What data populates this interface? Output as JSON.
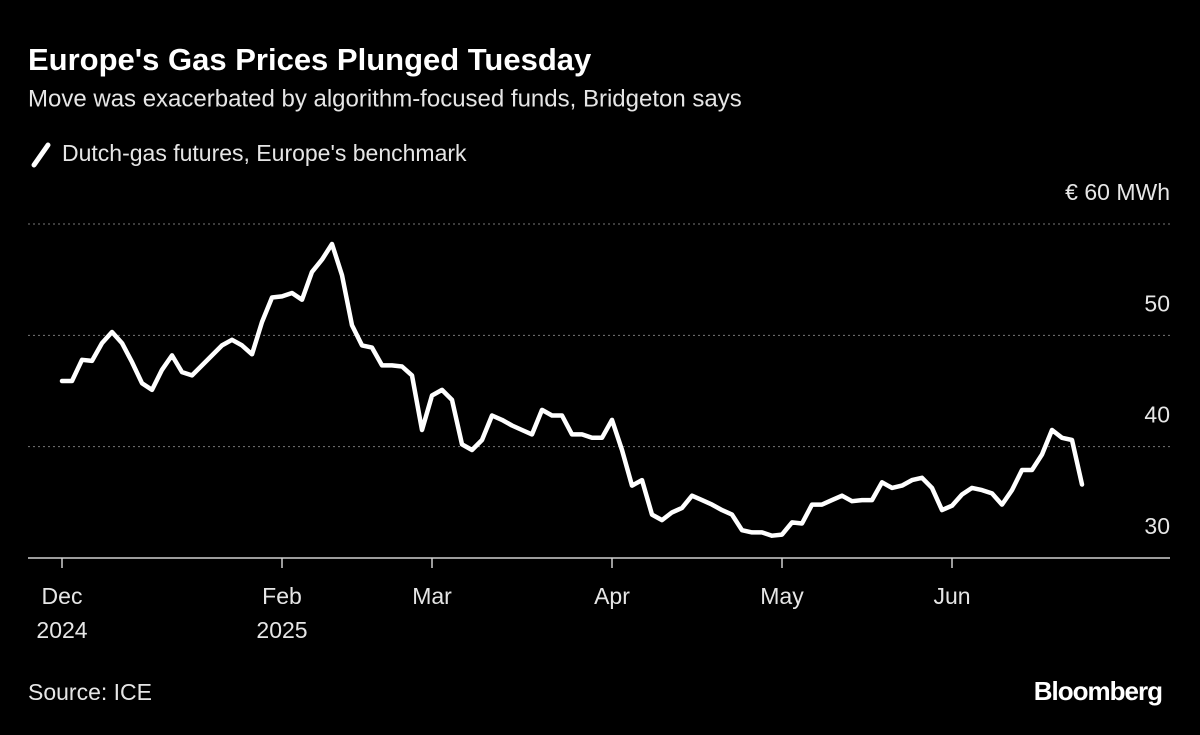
{
  "chart_data": {
    "type": "line",
    "title": "Europe's Gas Prices Plunged Tuesday",
    "subtitle": "Move was exacerbated by algorithm-focused funds, Bridgeton says",
    "source": "Source: ICE",
    "brand": "Bloomberg",
    "categories": [
      "Dec 2024",
      null,
      null,
      null,
      null,
      null,
      null,
      null,
      null,
      null,
      null,
      null,
      null,
      null,
      null,
      null,
      null,
      null,
      null,
      null,
      null,
      null,
      "Feb 2025",
      null,
      null,
      null,
      null,
      null,
      null,
      null,
      null,
      null,
      null,
      null,
      null,
      null,
      null,
      "Mar",
      null,
      null,
      null,
      null,
      null,
      null,
      null,
      null,
      null,
      null,
      null,
      null,
      null,
      null,
      null,
      null,
      null,
      "Apr",
      null,
      null,
      null,
      null,
      null,
      null,
      null,
      null,
      null,
      null,
      null,
      null,
      null,
      null,
      null,
      null,
      "May",
      null,
      null,
      null,
      null,
      null,
      null,
      null,
      null,
      null,
      null,
      null,
      null,
      null,
      null,
      null,
      null,
      "Jun",
      null,
      null,
      null,
      null,
      null,
      null,
      null,
      null,
      null,
      null,
      null,
      null,
      null
    ],
    "series": [
      {
        "name": "Dutch-gas futures, Europe's benchmark",
        "color": "#ffffff",
        "values": [
          45.9,
          45.9,
          47.8,
          47.7,
          49.3,
          50.3,
          49.3,
          47.6,
          45.7,
          45.1,
          46.9,
          48.2,
          46.7,
          46.4,
          47.3,
          48.2,
          49.1,
          49.6,
          49.1,
          48.3,
          51.2,
          53.4,
          53.5,
          53.8,
          53.2,
          55.7,
          56.8,
          58.2,
          55.4,
          50.9,
          49.1,
          48.9,
          47.3,
          47.3,
          47.2,
          46.4,
          41.5,
          44.6,
          45.1,
          44.2,
          40.2,
          39.7,
          40.6,
          42.8,
          42.4,
          41.9,
          41.5,
          41.1,
          43.3,
          42.8,
          42.8,
          41.1,
          41.1,
          40.8,
          40.8,
          42.4,
          39.7,
          36.5,
          37.0,
          33.9,
          33.4,
          34.1,
          34.5,
          35.6,
          35.2,
          34.8,
          34.3,
          33.9,
          32.5,
          32.3,
          32.3,
          32.0,
          32.1,
          33.2,
          33.1,
          34.8,
          34.8,
          35.2,
          35.6,
          35.1,
          35.2,
          35.2,
          36.8,
          36.3,
          36.5,
          37.0,
          37.2,
          36.3,
          34.3,
          34.7,
          35.7,
          36.3,
          36.1,
          35.8,
          34.8,
          36.1,
          37.9,
          37.9,
          39.3,
          41.5,
          40.8,
          40.6,
          36.6
        ]
      }
    ],
    "ylim": [
      30,
      60
    ],
    "yticks": [
      30,
      40,
      50,
      {
        "value": 60,
        "label": "€ 60 MWh"
      }
    ],
    "grid": true
  }
}
